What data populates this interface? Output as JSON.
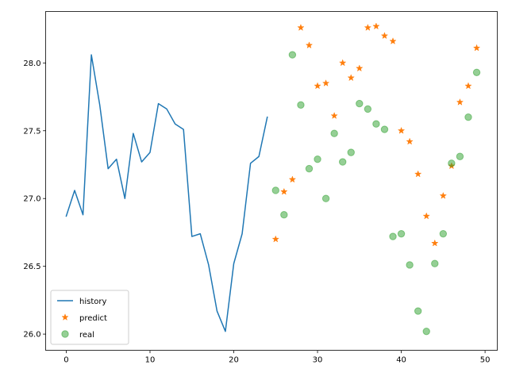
{
  "chart_data": {
    "type": "line",
    "title": "",
    "xlabel": "",
    "ylabel": "",
    "xlim": [
      -2.45,
      51.45
    ],
    "ylim": [
      25.88,
      28.38
    ],
    "xticks": [
      0,
      10,
      20,
      30,
      40,
      50
    ],
    "xtick_labels": [
      "0",
      "10",
      "20",
      "30",
      "40",
      "50"
    ],
    "yticks": [
      26.0,
      26.5,
      27.0,
      27.5,
      28.0
    ],
    "ytick_labels": [
      "26.0",
      "26.5",
      "27.0",
      "27.5",
      "28.0"
    ],
    "grid": false,
    "legend_position": "lower-left",
    "series": [
      {
        "name": "history",
        "style": "line",
        "color": "#1f77b4",
        "x": [
          0,
          1,
          2,
          3,
          4,
          5,
          6,
          7,
          8,
          9,
          10,
          11,
          12,
          13,
          14,
          15,
          16,
          17,
          18,
          19,
          20,
          21,
          22,
          23,
          24
        ],
        "y": [
          26.87,
          27.06,
          26.88,
          28.06,
          27.69,
          27.22,
          27.29,
          27.0,
          27.48,
          27.27,
          27.34,
          27.7,
          27.66,
          27.55,
          27.51,
          26.72,
          26.74,
          26.51,
          26.17,
          26.02,
          26.52,
          26.74,
          27.26,
          27.31,
          27.6
        ]
      },
      {
        "name": "predict",
        "style": "marker-star",
        "color": "#ff7f0e",
        "x": [
          25,
          26,
          27,
          28,
          29,
          30,
          31,
          32,
          33,
          34,
          35,
          36,
          37,
          38,
          39,
          40,
          41,
          42,
          43,
          44,
          45,
          46,
          47,
          48,
          49
        ],
        "y": [
          26.7,
          27.05,
          27.14,
          28.26,
          28.13,
          27.83,
          27.85,
          27.61,
          28.0,
          27.89,
          27.96,
          28.26,
          28.27,
          28.2,
          28.16,
          27.5,
          27.42,
          27.18,
          26.87,
          26.67,
          27.02,
          27.24,
          27.71,
          27.83,
          28.11
        ]
      },
      {
        "name": "real",
        "style": "marker-circle",
        "color": "#2ca02c",
        "x": [
          25,
          26,
          27,
          28,
          29,
          30,
          31,
          32,
          33,
          34,
          35,
          36,
          37,
          38,
          39,
          40,
          41,
          42,
          43,
          44,
          45,
          46,
          47,
          48,
          49
        ],
        "y": [
          27.06,
          26.88,
          28.06,
          27.69,
          27.22,
          27.29,
          27.0,
          27.48,
          27.27,
          27.34,
          27.7,
          27.66,
          27.55,
          27.51,
          26.72,
          26.74,
          26.51,
          26.17,
          26.02,
          26.52,
          26.74,
          27.26,
          27.31,
          27.6,
          27.93
        ]
      }
    ]
  }
}
